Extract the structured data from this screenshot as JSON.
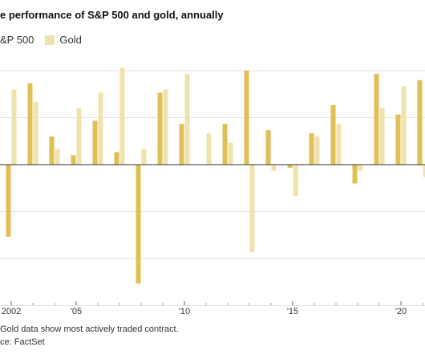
{
  "title": "e performance of S&P 500 and gold, annually",
  "legend": {
    "sp500_label": "&P 500",
    "gold_label": "Gold"
  },
  "note": " Gold data show most actively traded contract.",
  "source": "ce: FactSet",
  "colors": {
    "sp500": "#e0bf55",
    "gold": "#f0e2ac",
    "grid": "#e2e2e2",
    "zero_line": "#333333"
  },
  "chart_data": {
    "type": "bar",
    "title": "e performance of S&P 500 and gold, annually",
    "categories": [
      "2002",
      "2003",
      "2004",
      "2005",
      "2006",
      "2007",
      "2008",
      "2009",
      "2010",
      "2011",
      "2012",
      "2013",
      "2014",
      "2015",
      "2016",
      "2017",
      "2018",
      "2019",
      "2020",
      "2021"
    ],
    "series": [
      {
        "name": "&P 500",
        "values": [
          -23,
          26,
          9,
          3,
          14,
          4,
          -38,
          23,
          13,
          0,
          13,
          30,
          11,
          -1,
          10,
          19,
          -6,
          29,
          16,
          27
        ]
      },
      {
        "name": "Gold",
        "values": [
          24,
          20,
          5,
          18,
          23,
          31,
          5,
          24,
          29,
          10,
          7,
          -28,
          -2,
          -10,
          9,
          13,
          -2,
          18,
          25,
          -4
        ]
      }
    ],
    "ylim": [
      -45,
      30
    ],
    "grid": true,
    "legend_position": "top-left",
    "x_tick_labels": [
      {
        "category": "2002",
        "label": "2002"
      },
      {
        "category": "2005",
        "label": "'05"
      },
      {
        "category": "2010",
        "label": "'10"
      },
      {
        "category": "2015",
        "label": "'15"
      },
      {
        "category": "2020",
        "label": "'20"
      }
    ]
  }
}
